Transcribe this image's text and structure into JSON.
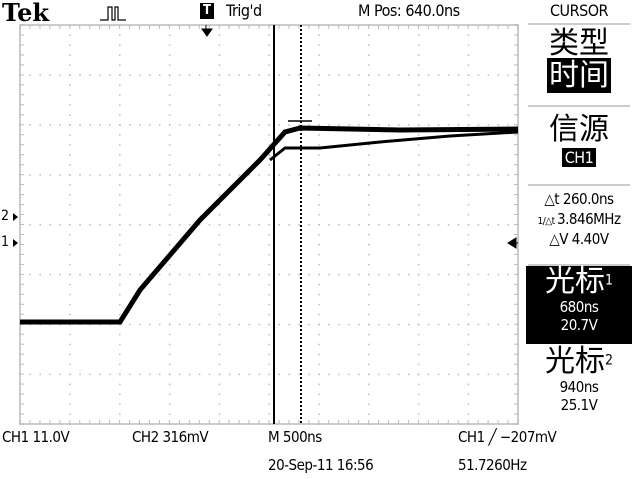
{
  "header": {
    "brand": "Tek",
    "acquisition_icon": "pulse-waveform-icon",
    "trigger_badge": "T",
    "trigger_status": "Trig'd",
    "main_position": "M Pos: 640.0ns"
  },
  "side_menu": {
    "title": "CURSOR",
    "type_label": "类型",
    "type_value": "时间",
    "source_label": "信源",
    "source_value": "CH1",
    "delta_t": "△t 260.0ns",
    "inv_delta_t": "3.846MHz",
    "delta_v": "△V 4.40V",
    "cursor1_label": "光标",
    "cursor1_index": "1",
    "cursor1_time": "680ns",
    "cursor1_volt": "20.7V",
    "cursor2_label": "光标",
    "cursor2_index": "2",
    "cursor2_time": "940ns",
    "cursor2_volt": "25.1V"
  },
  "markers": {
    "ch2": "2",
    "ch1": "1"
  },
  "footer": {
    "ch1_scale": "CH1  11.0V",
    "ch2_scale": "CH2  316mV",
    "timebase": "M 500ns",
    "trigger": "CH1 ╱ −207mV",
    "datetime": "20-Sep-11 16:56",
    "frequency": "51.7260Hz"
  }
}
